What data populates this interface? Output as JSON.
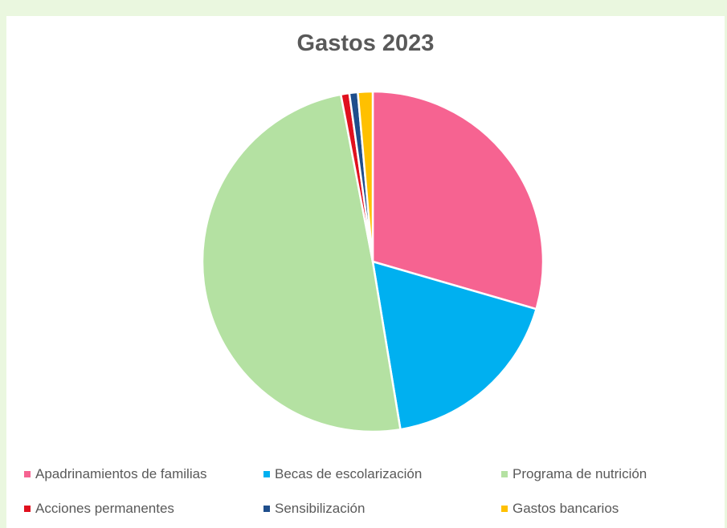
{
  "chart_data": {
    "type": "pie",
    "title": "Gastos 2023",
    "legend_position": "bottom",
    "start_angle_deg": 0,
    "direction": "clockwise",
    "categories": [
      "Apadrinamientos de familias",
      "Becas de escolarización",
      "Programa de nutrición",
      "Acciones permanentes",
      "Sensibilización",
      "Gastos bancarios"
    ],
    "values": [
      29.5,
      17.9,
      49.6,
      0.8,
      0.8,
      1.4
    ],
    "colors": [
      "#f66391",
      "#00b0f0",
      "#b4e1a2",
      "#e0101e",
      "#1f4e8c",
      "#ffc000"
    ]
  }
}
